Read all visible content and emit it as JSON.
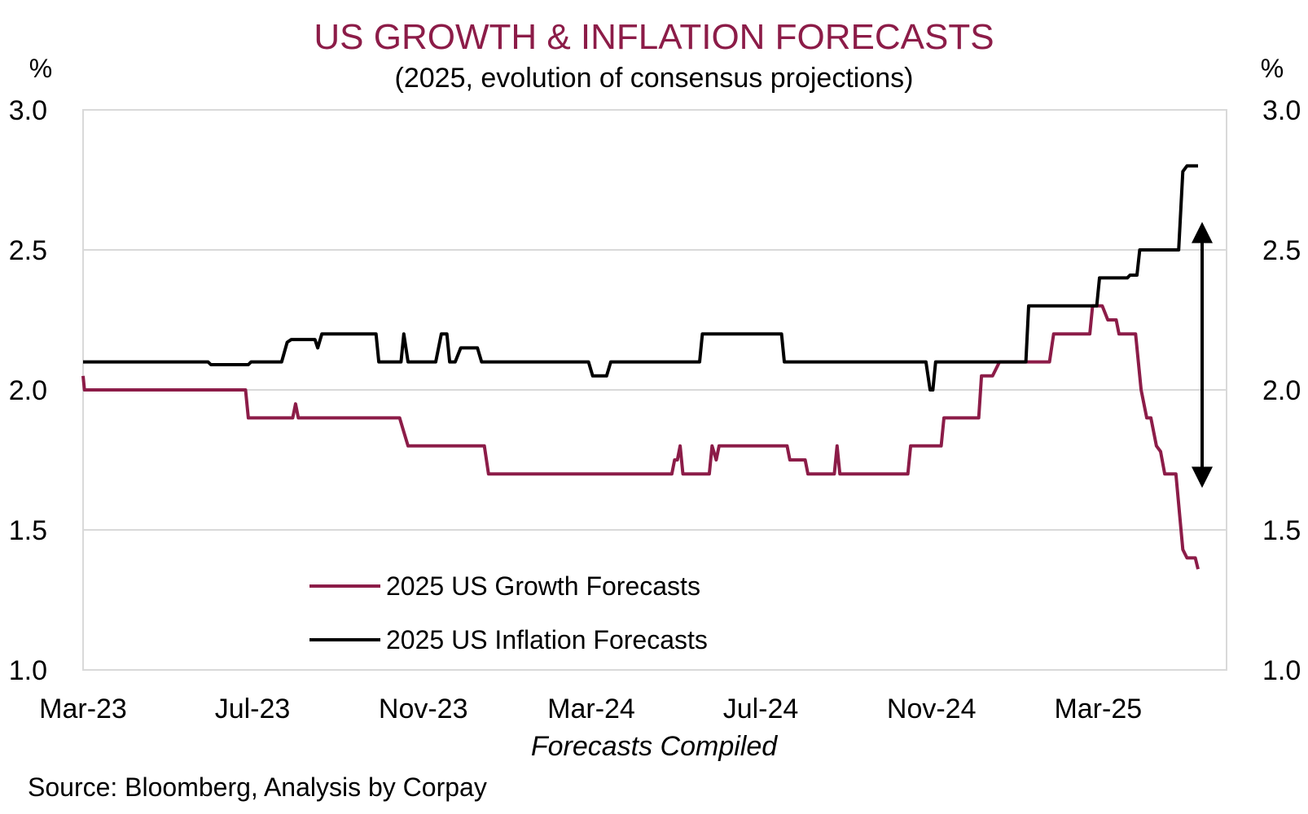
{
  "chart_data": {
    "type": "line",
    "title": "US GROWTH & INFLATION FORECASTS",
    "subtitle": "(2025, evolution of consensus projections)",
    "xlabel": "Forecasts Compiled",
    "ylabel_left": "%",
    "ylabel_right": "%",
    "source": "Source: Bloomberg, Analysis by Corpay",
    "ylim": [
      1.0,
      3.0
    ],
    "yticks": [
      "1.0",
      "1.5",
      "2.0",
      "2.5",
      "3.0"
    ],
    "xticks": [
      "Mar-23",
      "Jul-23",
      "Nov-23",
      "Mar-24",
      "Jul-24",
      "Nov-24",
      "Mar-25"
    ],
    "grid": true,
    "legend_position": "bottom-left",
    "annotation": "double-headed arrow spanning approx 1.65% to 2.6% at end of period",
    "colors": {
      "growth": "#8c1c48",
      "inflation": "#000000",
      "title": "#8c1c48",
      "grid": "#d9d9d9"
    },
    "series": [
      {
        "name": "2025 US Growth Forecasts",
        "color": "#8c1c48",
        "points": [
          [
            "2023-03-01",
            2.05
          ],
          [
            "2023-03-02",
            2.0
          ],
          [
            "2023-06-26",
            2.0
          ],
          [
            "2023-06-28",
            1.9
          ],
          [
            "2023-07-30",
            1.9
          ],
          [
            "2023-08-01",
            1.95
          ],
          [
            "2023-08-03",
            1.9
          ],
          [
            "2023-10-15",
            1.9
          ],
          [
            "2023-10-18",
            1.85
          ],
          [
            "2023-10-21",
            1.8
          ],
          [
            "2023-12-15",
            1.8
          ],
          [
            "2023-12-18",
            1.7
          ],
          [
            "2024-04-28",
            1.7
          ],
          [
            "2024-04-30",
            1.75
          ],
          [
            "2024-05-02",
            1.75
          ],
          [
            "2024-05-04",
            1.8
          ],
          [
            "2024-05-06",
            1.7
          ],
          [
            "2024-05-25",
            1.7
          ],
          [
            "2024-05-27",
            1.8
          ],
          [
            "2024-05-30",
            1.75
          ],
          [
            "2024-06-01",
            1.8
          ],
          [
            "2024-07-20",
            1.8
          ],
          [
            "2024-07-22",
            1.75
          ],
          [
            "2024-08-02",
            1.75
          ],
          [
            "2024-08-04",
            1.7
          ],
          [
            "2024-08-23",
            1.7
          ],
          [
            "2024-08-25",
            1.8
          ],
          [
            "2024-08-27",
            1.7
          ],
          [
            "2024-10-15",
            1.7
          ],
          [
            "2024-10-17",
            1.8
          ],
          [
            "2024-11-08",
            1.8
          ],
          [
            "2024-11-10",
            1.9
          ],
          [
            "2024-12-05",
            1.9
          ],
          [
            "2024-12-07",
            2.05
          ],
          [
            "2024-12-15",
            2.05
          ],
          [
            "2024-12-20",
            2.1
          ],
          [
            "2025-01-25",
            2.1
          ],
          [
            "2025-01-28",
            2.2
          ],
          [
            "2025-02-23",
            2.2
          ],
          [
            "2025-02-25",
            2.3
          ],
          [
            "2025-03-04",
            2.3
          ],
          [
            "2025-03-08",
            2.25
          ],
          [
            "2025-03-14",
            2.25
          ],
          [
            "2025-03-16",
            2.2
          ],
          [
            "2025-03-28",
            2.2
          ],
          [
            "2025-04-01",
            2.0
          ],
          [
            "2025-04-05",
            1.9
          ],
          [
            "2025-04-08",
            1.9
          ],
          [
            "2025-04-12",
            1.8
          ],
          [
            "2025-04-15",
            1.78
          ],
          [
            "2025-04-18",
            1.7
          ],
          [
            "2025-04-26",
            1.7
          ],
          [
            "2025-05-01",
            1.43
          ],
          [
            "2025-05-04",
            1.4
          ],
          [
            "2025-05-10",
            1.4
          ],
          [
            "2025-05-12",
            1.36
          ]
        ]
      },
      {
        "name": "2025 US Inflation Forecasts",
        "color": "#000000",
        "points": [
          [
            "2023-03-01",
            2.1
          ],
          [
            "2023-05-30",
            2.1
          ],
          [
            "2023-06-01",
            2.09
          ],
          [
            "2023-06-28",
            2.09
          ],
          [
            "2023-06-30",
            2.1
          ],
          [
            "2023-07-22",
            2.1
          ],
          [
            "2023-07-26",
            2.17
          ],
          [
            "2023-07-29",
            2.18
          ],
          [
            "2023-08-15",
            2.18
          ],
          [
            "2023-08-17",
            2.15
          ],
          [
            "2023-08-20",
            2.2
          ],
          [
            "2023-09-28",
            2.2
          ],
          [
            "2023-09-30",
            2.1
          ],
          [
            "2023-10-16",
            2.1
          ],
          [
            "2023-10-18",
            2.2
          ],
          [
            "2023-10-21",
            2.1
          ],
          [
            "2023-11-10",
            2.1
          ],
          [
            "2023-11-14",
            2.2
          ],
          [
            "2023-11-18",
            2.2
          ],
          [
            "2023-11-20",
            2.1
          ],
          [
            "2023-11-24",
            2.1
          ],
          [
            "2023-11-28",
            2.15
          ],
          [
            "2023-12-10",
            2.15
          ],
          [
            "2023-12-13",
            2.1
          ],
          [
            "2024-02-28",
            2.1
          ],
          [
            "2024-03-02",
            2.05
          ],
          [
            "2024-03-12",
            2.05
          ],
          [
            "2024-03-15",
            2.1
          ],
          [
            "2024-05-18",
            2.1
          ],
          [
            "2024-05-20",
            2.2
          ],
          [
            "2024-07-16",
            2.2
          ],
          [
            "2024-07-18",
            2.1
          ],
          [
            "2024-10-28",
            2.1
          ],
          [
            "2024-10-31",
            2.0
          ],
          [
            "2024-11-02",
            2.0
          ],
          [
            "2024-11-04",
            2.1
          ],
          [
            "2025-01-08",
            2.1
          ],
          [
            "2025-01-10",
            2.3
          ],
          [
            "2025-02-28",
            2.3
          ],
          [
            "2025-03-02",
            2.4
          ],
          [
            "2025-03-22",
            2.4
          ],
          [
            "2025-03-24",
            2.41
          ],
          [
            "2025-03-29",
            2.41
          ],
          [
            "2025-03-31",
            2.5
          ],
          [
            "2025-04-28",
            2.5
          ],
          [
            "2025-05-01",
            2.78
          ],
          [
            "2025-05-04",
            2.8
          ],
          [
            "2025-05-12",
            2.8
          ]
        ]
      }
    ]
  }
}
